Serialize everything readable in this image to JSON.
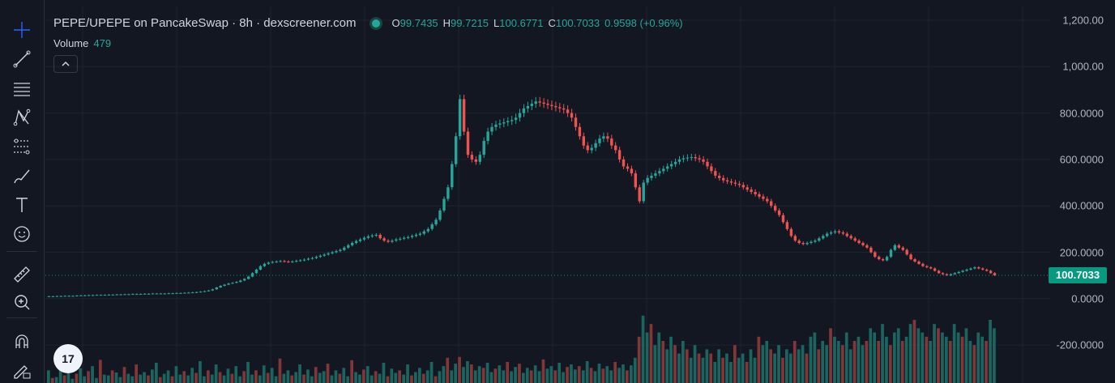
{
  "legend": {
    "title": "PEPE/UPEPE on PancakeSwap · 8h · dexscreener.com",
    "o_label": "O",
    "o_value": "99.7435",
    "h_label": "H",
    "h_value": "99.7215",
    "l_label": "L",
    "l_value": "100.6771",
    "c_label": "C",
    "c_value": "100.7033",
    "change": "0.9598 (+0.96%)",
    "volume_label": "Volume",
    "volume_value": "479",
    "collapse_icon": "chevron-up-icon"
  },
  "toolbar": {
    "icons": [
      "crosshair-icon",
      "trend-line-icon",
      "horizontal-lines-icon",
      "pattern-icon",
      "fib-levels-icon",
      "brush-icon",
      "text-icon",
      "emoji-icon",
      "ruler-icon",
      "zoom-in-icon",
      "magnet-icon",
      "lock-pencil-icon"
    ]
  },
  "logo": {
    "text": "17"
  },
  "colors": {
    "up": "#26a69a",
    "down": "#ef5350",
    "background": "#131722",
    "grid": "#1f2330",
    "last_price": "#089981"
  },
  "chart_data": {
    "type": "candlestick",
    "title": "PEPE/UPEPE on PancakeSwap · 8h · dexscreener.com",
    "y_ticks": [
      "1,200.00",
      "1,000.00",
      "800.0000",
      "600.0000",
      "400.0000",
      "200.0000",
      "0.0000",
      "-200.0000"
    ],
    "y_tick_values": [
      1200,
      1000,
      800,
      600,
      400,
      200,
      0,
      -200
    ],
    "ylim": [
      -250,
      1230
    ],
    "last_price": 100.7033,
    "last_price_label": "100.7033",
    "close_series": [
      10,
      10,
      11,
      11,
      12,
      12,
      12,
      13,
      14,
      14,
      15,
      15,
      16,
      16,
      16,
      17,
      17,
      18,
      18,
      19,
      19,
      20,
      20,
      20,
      21,
      21,
      22,
      22,
      22,
      22,
      23,
      23,
      24,
      24,
      25,
      26,
      27,
      28,
      30,
      32,
      35,
      40,
      48,
      55,
      60,
      65,
      68,
      72,
      78,
      85,
      95,
      110,
      125,
      140,
      150,
      155,
      158,
      160,
      162,
      160,
      158,
      160,
      163,
      165,
      168,
      172,
      175,
      180,
      185,
      190,
      195,
      200,
      205,
      210,
      220,
      230,
      240,
      248,
      255,
      262,
      268,
      272,
      275,
      260,
      250,
      245,
      250,
      255,
      258,
      262,
      265,
      270,
      275,
      280,
      290,
      300,
      320,
      340,
      380,
      430,
      480,
      580,
      700,
      860,
      720,
      620,
      600,
      590,
      620,
      680,
      720,
      740,
      750,
      755,
      760,
      765,
      770,
      780,
      800,
      820,
      830,
      840,
      850,
      845,
      840,
      835,
      830,
      825,
      820,
      815,
      800,
      780,
      740,
      700,
      660,
      640,
      650,
      670,
      690,
      700,
      690,
      660,
      640,
      600,
      570,
      560,
      540,
      480,
      420,
      500,
      520,
      530,
      540,
      550,
      560,
      570,
      580,
      590,
      600,
      605,
      608,
      610,
      605,
      600,
      590,
      570,
      550,
      530,
      520,
      510,
      505,
      500,
      495,
      490,
      480,
      470,
      460,
      450,
      440,
      430,
      420,
      400,
      380,
      360,
      330,
      300,
      270,
      250,
      240,
      235,
      240,
      245,
      250,
      260,
      270,
      280,
      285,
      290,
      285,
      280,
      270,
      260,
      250,
      240,
      230,
      220,
      200,
      180,
      170,
      165,
      180,
      210,
      230,
      220,
      210,
      190,
      170,
      160,
      150,
      140,
      135,
      130,
      120,
      110,
      105,
      100,
      105,
      110,
      115,
      120,
      125,
      130,
      135,
      130,
      125,
      120,
      110,
      100.7
    ],
    "volume_series": [
      30,
      12,
      14,
      45,
      18,
      60,
      10,
      22,
      35,
      16,
      28,
      40,
      12,
      55,
      20,
      18,
      30,
      25,
      14,
      38,
      22,
      16,
      44,
      20,
      26,
      18,
      32,
      48,
      14,
      22,
      30,
      16,
      40,
      20,
      28,
      18,
      36,
      24,
      52,
      16,
      30,
      20,
      44,
      26,
      18,
      34,
      22,
      40,
      16,
      28,
      50,
      20,
      30,
      18,
      42,
      24,
      36,
      16,
      58,
      22,
      30,
      18,
      26,
      44,
      20,
      32,
      16,
      38,
      24,
      28,
      46,
      18,
      30,
      22,
      36,
      16,
      54,
      26,
      20,
      32,
      40,
      18,
      28,
      22,
      48,
      16,
      34,
      24,
      30,
      20,
      44,
      18,
      26,
      36,
      22,
      30,
      50,
      16,
      28,
      40,
      60,
      30,
      46,
      62,
      38,
      52,
      44,
      30,
      40,
      36,
      48,
      26,
      34,
      42,
      30,
      50,
      28,
      38,
      46,
      24,
      36,
      30,
      42,
      28,
      56,
      34,
      40,
      30,
      48,
      26,
      38,
      44,
      32,
      40,
      30,
      52,
      36,
      28,
      46,
      34,
      40,
      30,
      50,
      36,
      44,
      30,
      42,
      60,
      110,
      160,
      120,
      140,
      90,
      120,
      100,
      80,
      110,
      90,
      70,
      100,
      80,
      60,
      90,
      70,
      60,
      80,
      70,
      50,
      80,
      60,
      70,
      50,
      90,
      60,
      70,
      50,
      80,
      60,
      110,
      90,
      100,
      80,
      70,
      90,
      60,
      80,
      70,
      100,
      80,
      90,
      70,
      110,
      120,
      80,
      100,
      90,
      130,
      110,
      100,
      90,
      120,
      80,
      100,
      110,
      90,
      100,
      130,
      120,
      100,
      140,
      110,
      90,
      120,
      130,
      100,
      110,
      140,
      150,
      130,
      120,
      110,
      100,
      140,
      130,
      120,
      110,
      100,
      140,
      120,
      110,
      130,
      100,
      90,
      120,
      110,
      100,
      150,
      130
    ]
  }
}
